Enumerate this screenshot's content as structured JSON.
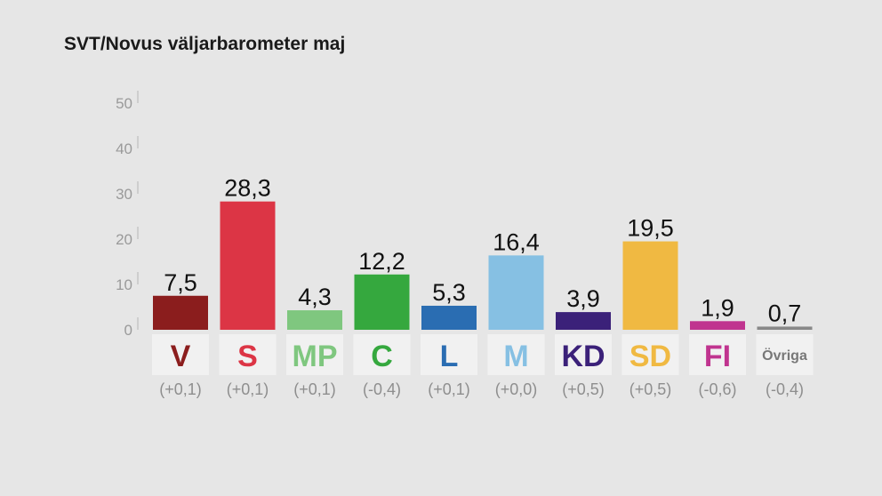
{
  "title": "SVT/Novus väljarbarometer maj",
  "chart_data": {
    "type": "bar",
    "title": "SVT/Novus väljarbarometer maj",
    "xlabel": "",
    "ylabel": "",
    "ylim": [
      0,
      50
    ],
    "yticks": [
      "0",
      "10",
      "20",
      "30",
      "40",
      "50"
    ],
    "grid": false,
    "categories": [
      "V",
      "S",
      "MP",
      "C",
      "L",
      "M",
      "KD",
      "SD",
      "FI",
      "Övriga"
    ],
    "values": [
      7.5,
      28.3,
      4.3,
      12.2,
      5.3,
      16.4,
      3.9,
      19.5,
      1.9,
      0.7
    ],
    "value_labels": [
      "7,5",
      "28,3",
      "4,3",
      "12,2",
      "5,3",
      "16,4",
      "3,9",
      "19,5",
      "1,9",
      "0,7"
    ],
    "changes": [
      "(+0,1)",
      "(+0,1)",
      "(+0,1)",
      "(-0,4)",
      "(+0,1)",
      "(+0,0)",
      "(+0,5)",
      "(+0,5)",
      "(-0,6)",
      "(-0,4)"
    ],
    "colors": [
      "#8b1d1d",
      "#dc3545",
      "#7fc77f",
      "#35a83e",
      "#2a6db2",
      "#86c0e3",
      "#3b2179",
      "#f0b942",
      "#c0348f",
      "#888888"
    ]
  }
}
